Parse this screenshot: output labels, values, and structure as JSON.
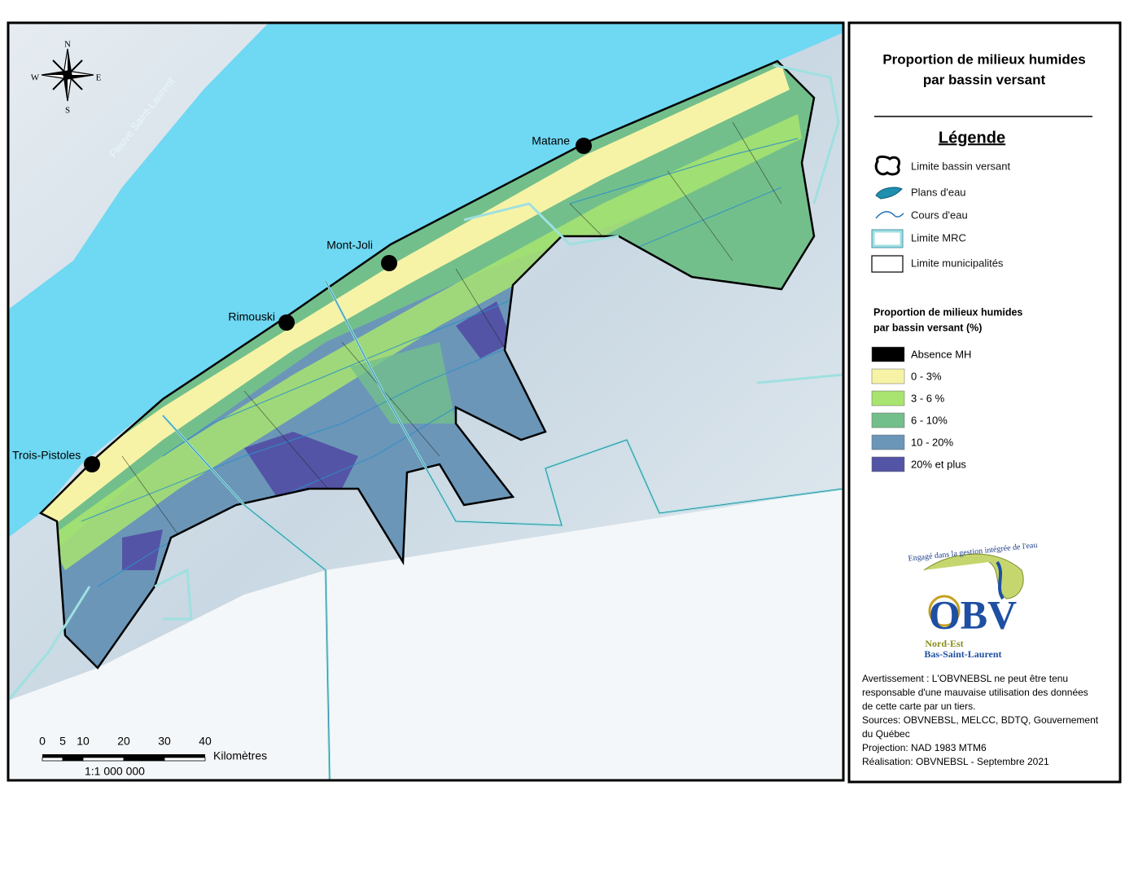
{
  "map": {
    "river": "Fleuve Saint-Laurent",
    "compass": {
      "n": "N",
      "e": "E",
      "s": "S",
      "w": "W"
    },
    "cities": [
      "Matane",
      "Mont-Joli",
      "Rimouski",
      "Trois-Pistoles"
    ]
  },
  "scale": {
    "ticks": [
      0,
      5,
      10,
      20,
      30,
      40
    ],
    "unit": "Kilomètres",
    "ratio": "1:1 000 000"
  },
  "legend": {
    "title_lines": [
      "Proportion de milieux humides",
      "par bassin versant"
    ],
    "heading": "Légende",
    "symbols": [
      "Limite bassin versant",
      "Plans d'eau",
      "Cours d'eau",
      "Limite MRC",
      "Limite municipalités"
    ],
    "class_title_lines": [
      "Proportion de milieux humides",
      "par bassin versant (%)"
    ],
    "classes": [
      {
        "label": "Absence MH",
        "color": "#000000"
      },
      {
        "label": "0 - 3%",
        "color": "#f7f3a6"
      },
      {
        "label": "3 - 6 %",
        "color": "#a8e46f"
      },
      {
        "label": "6 - 10%",
        "color": "#73bf8c"
      },
      {
        "label": "10 - 20%",
        "color": "#6b96b8"
      },
      {
        "label": "20% et plus",
        "color": "#5454a6"
      }
    ]
  },
  "logo": {
    "motto": "Engagé dans la gestion intégrée de l'eau",
    "name": "OBV",
    "region_1": "Nord-Est",
    "region_2": "Bas-Saint-Laurent"
  },
  "notes": [
    "Avertissement : L'OBVNEBSL ne peut être tenu",
    "responsable d'une mauvaise utilisation des données",
    "de cette carte par un tiers.",
    "Sources: OBVNEBSL, MELCC, BDTQ, Gouvernement",
    "du Québec",
    "Projection: NAD 1983 MTM6",
    "Réalisation: OBVNEBSL - Septembre 2021"
  ]
}
